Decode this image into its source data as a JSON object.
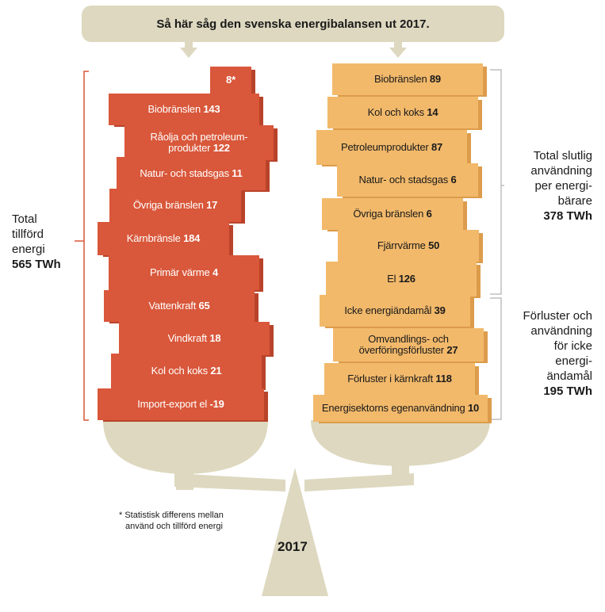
{
  "title": "Så här såg den svenska energibalansen ut 2017.",
  "left_total": {
    "lines": [
      "Total",
      "tillförd",
      "energi"
    ],
    "value": "565 TWh"
  },
  "right_top_total": {
    "lines": [
      "Total slutlig",
      "användning",
      "per energi-",
      "bärare"
    ],
    "value": "378 TWh"
  },
  "right_bottom_total": {
    "lines": [
      "Förluster och",
      "användning",
      "för icke",
      "energi-",
      "ändamål"
    ],
    "value": "195 TWh"
  },
  "supply": [
    {
      "label": "",
      "value": "8*"
    },
    {
      "label": "Biobränslen",
      "value": "143"
    },
    {
      "label": "Råolja och petroleum-\nprodukter",
      "value": "122"
    },
    {
      "label": "Natur- och stadsgas",
      "value": "11"
    },
    {
      "label": "Övriga bränslen",
      "value": "17"
    },
    {
      "label": "Kärnbränsle",
      "value": "184"
    },
    {
      "label": "Primär värme",
      "value": "4"
    },
    {
      "label": "Vattenkraft",
      "value": "65"
    },
    {
      "label": "Vindkraft",
      "value": "18"
    },
    {
      "label": "Kol och koks",
      "value": "21"
    },
    {
      "label": "Import-export el",
      "value": "-19"
    }
  ],
  "use": [
    {
      "label": "Biobränslen",
      "value": "89"
    },
    {
      "label": "Kol och koks",
      "value": "14"
    },
    {
      "label": "Petroleumprodukter",
      "value": "87"
    },
    {
      "label": "Natur- och stadsgas",
      "value": "6"
    },
    {
      "label": "Övriga bränslen",
      "value": "6"
    },
    {
      "label": "Fjärrvärme",
      "value": "50"
    },
    {
      "label": "El",
      "value": "126"
    },
    {
      "label": "Icke energiändamål",
      "value": "39"
    },
    {
      "label": "Omvandlings- och\növerföringsförluster",
      "value": "27"
    },
    {
      "label": "Förluster i kärnkraft",
      "value": "118"
    },
    {
      "label": "Energisektorns egenanvändning",
      "value": "10"
    }
  ],
  "footnote": "* Statistisk differens mellan\n  använd och tillförd energi",
  "year": "2017",
  "colors": {
    "supply": "#d9573a",
    "use": "#f2b96b",
    "scale": "#ddd8bf",
    "bracket_left": "#d9573a",
    "bracket_right": "#bfbfbf"
  }
}
